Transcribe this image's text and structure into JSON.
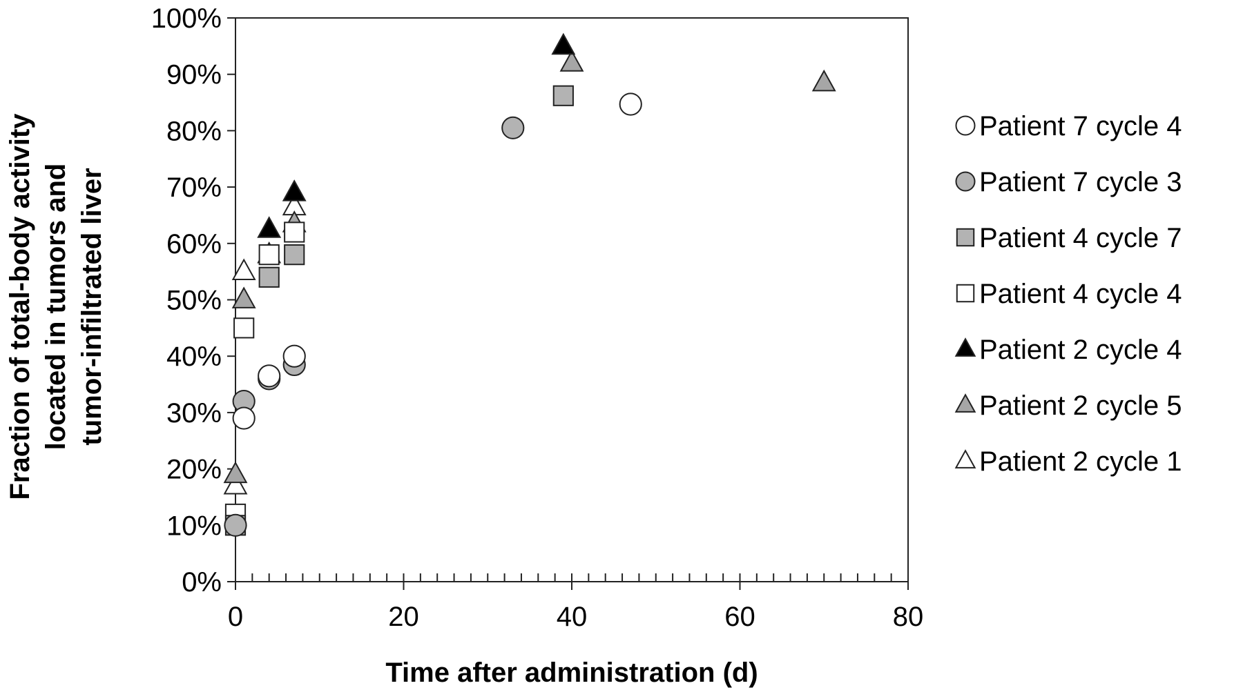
{
  "chart_data": {
    "type": "scatter",
    "title": "",
    "xlabel": "Time after administration (d)",
    "ylabel_lines": [
      "Fraction of total-body activity",
      "located in tumors and",
      "tumor-infiltrated liver"
    ],
    "xlim": [
      0,
      80
    ],
    "ylim": [
      0,
      1
    ],
    "x_ticks": [
      0,
      20,
      40,
      60,
      80
    ],
    "x_tick_labels": [
      "0",
      "20",
      "40",
      "60",
      "80"
    ],
    "x_minor_step": 2,
    "y_ticks": [
      0,
      0.1,
      0.2,
      0.3,
      0.4,
      0.5,
      0.6,
      0.7,
      0.8,
      0.9,
      1.0
    ],
    "y_tick_labels": [
      "0%",
      "10%",
      "20%",
      "30%",
      "40%",
      "50%",
      "60%",
      "70%",
      "80%",
      "90%",
      "100%"
    ],
    "grid": false,
    "legend_position": "right",
    "series": [
      {
        "name": "Patient 7 cycle 4",
        "marker": "circle",
        "fill": "#ffffff",
        "x": [
          1,
          4,
          7,
          47
        ],
        "y": [
          0.29,
          0.365,
          0.4,
          0.847
        ]
      },
      {
        "name": "Patient 7 cycle 3",
        "marker": "circle",
        "fill": "#b3b3b3",
        "x": [
          0,
          1,
          4,
          7,
          33
        ],
        "y": [
          0.1,
          0.32,
          0.36,
          0.385,
          0.805
        ]
      },
      {
        "name": "Patient 4 cycle 7",
        "marker": "square",
        "fill": "#b3b3b3",
        "x": [
          0,
          4,
          7,
          39
        ],
        "y": [
          0.1,
          0.54,
          0.58,
          0.862
        ]
      },
      {
        "name": "Patient 4 cycle 4",
        "marker": "square",
        "fill": "#ffffff",
        "x": [
          0,
          1,
          4,
          7
        ],
        "y": [
          0.12,
          0.45,
          0.58,
          0.62
        ]
      },
      {
        "name": "Patient 2 cycle 4",
        "marker": "triangle",
        "fill": "#000000",
        "x": [
          4,
          7,
          39
        ],
        "y": [
          0.625,
          0.69,
          0.95
        ]
      },
      {
        "name": "Patient 2 cycle 5",
        "marker": "triangle",
        "fill": "#a6a6a6",
        "x": [
          0,
          1,
          4,
          7,
          40,
          70
        ],
        "y": [
          0.19,
          0.5,
          0.58,
          0.635,
          0.92,
          0.885
        ]
      },
      {
        "name": "Patient 2 cycle 1",
        "marker": "triangle",
        "fill": "#ffffff",
        "x": [
          0,
          1,
          7
        ],
        "y": [
          0.17,
          0.55,
          0.665
        ]
      }
    ]
  }
}
